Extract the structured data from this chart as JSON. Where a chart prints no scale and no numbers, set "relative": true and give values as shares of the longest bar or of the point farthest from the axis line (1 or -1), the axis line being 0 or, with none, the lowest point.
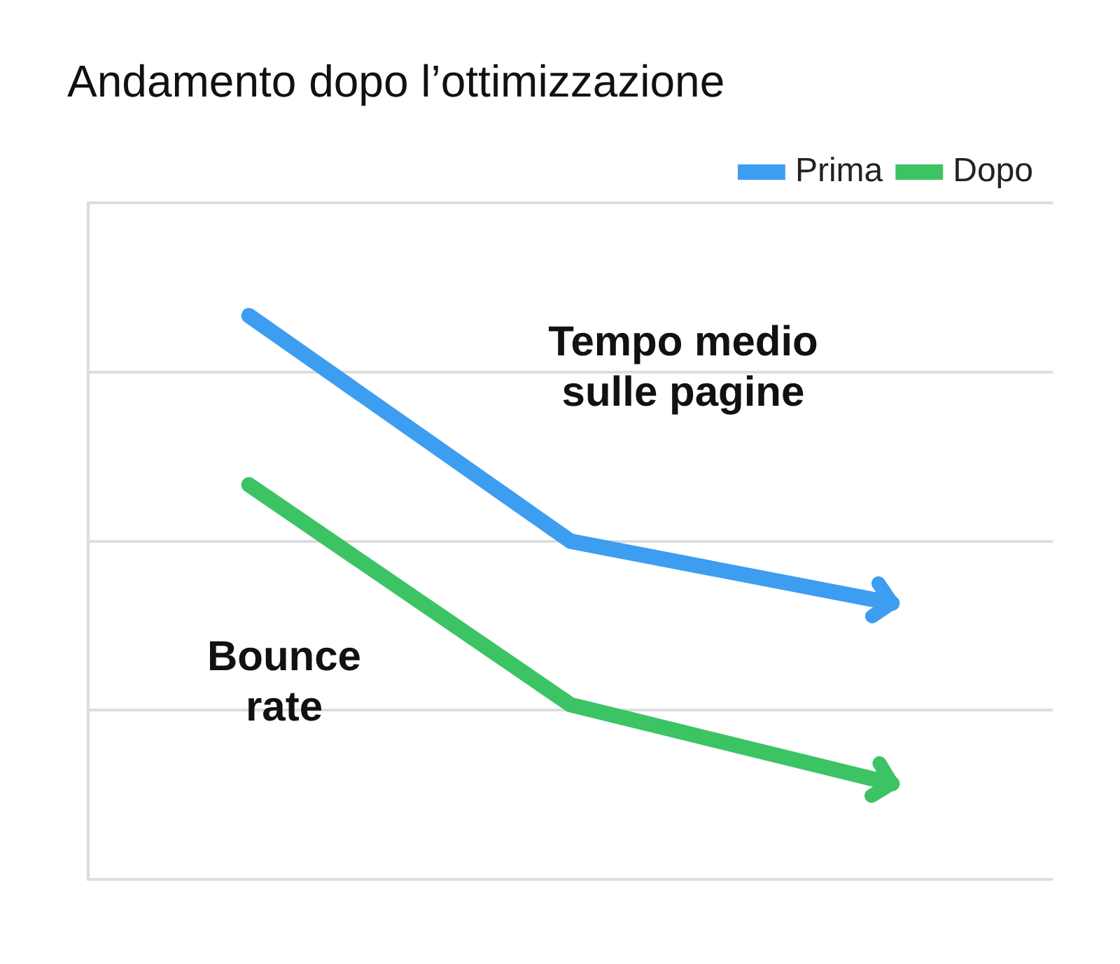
{
  "chart_data": {
    "type": "line",
    "title": "Andamento dopo l’ottimizzazione",
    "relative": true,
    "categories": [
      null,
      null,
      null
    ],
    "series": [
      {
        "name": "Prima",
        "color": "#3d9df0",
        "values": [
          1,
          0.6,
          0.49
        ]
      },
      {
        "name": "Dopo",
        "color": "#3cc464",
        "values": [
          0.7,
          0.31,
          0.17
        ]
      }
    ],
    "annotations": [
      "Tempo medio sulle pagine",
      "Bounce rate"
    ],
    "grid": "y",
    "legend": "top right",
    "marker": "none",
    "line_style": "solid"
  }
}
